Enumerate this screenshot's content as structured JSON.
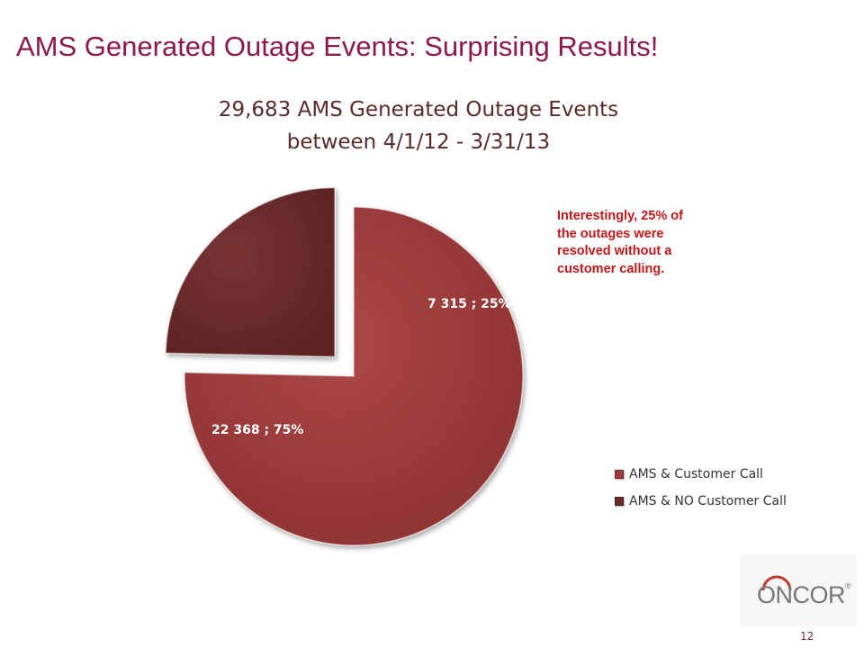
{
  "slide": {
    "title": "AMS Generated Outage Events: Surprising Results!",
    "page_number": "12"
  },
  "annotation": {
    "lines": [
      "Interestingly, 25% of",
      "the outages were",
      "resolved without a",
      "customer calling."
    ],
    "color": "#c01818"
  },
  "logo": {
    "text": "ONCOR",
    "trademark": "®",
    "ring_color": "#c0392b"
  },
  "chart_data": {
    "type": "pie",
    "title_lines": [
      "29,683 AMS Generated Outage Events",
      "between 4/1/12 - 3/31/13"
    ],
    "slices": [
      {
        "name": "AMS & Customer Call",
        "value": 22368,
        "percent": 75,
        "label": "22 368 ; 75%",
        "color": "#9e3b3b",
        "exploded": false
      },
      {
        "name": "AMS & NO Customer Call",
        "value": 7315,
        "percent": 25,
        "label": "7 315 ; 25%",
        "color": "#6b2a2a",
        "exploded": true
      }
    ],
    "legend_position": "right",
    "start_angle": "12 o'clock, clockwise"
  }
}
